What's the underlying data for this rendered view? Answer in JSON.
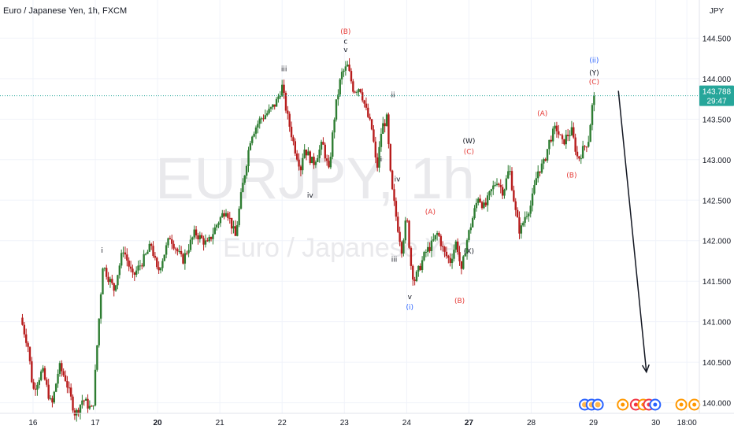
{
  "header": {
    "symbol_title": "Euro / Japanese Yen, 1h, FXCM"
  },
  "watermark": {
    "ticker": "EURJPY, 1h",
    "name": "Euro / Japanese Yen"
  },
  "price_badge": {
    "price": "143.788",
    "countdown": "29:47",
    "color": "#26a69a"
  },
  "colors": {
    "up": "#26a69a",
    "down": "#ef5350",
    "up_candle": "#2e7d32",
    "down_candle": "#b71c1c",
    "wave_black": "#131722",
    "wave_red": "#e53935",
    "wave_blue": "#2962ff",
    "grid": "#f0f3fa"
  },
  "chart_data": {
    "type": "candlestick",
    "currency_label": "JPY",
    "y_ticks": [
      "144.500",
      "144.000",
      "143.500",
      "143.000",
      "142.500",
      "142.000",
      "141.500",
      "141.000",
      "140.500",
      "140.000"
    ],
    "y_tick_values": [
      144.5,
      144.0,
      143.5,
      143.0,
      142.5,
      142.0,
      141.5,
      141.0,
      140.5,
      140.0
    ],
    "ylim": [
      139.87,
      144.97
    ],
    "x_ticks": [
      {
        "label": "16",
        "bold": false,
        "x": 0.2
      },
      {
        "label": "17",
        "bold": false,
        "x": 1.2
      },
      {
        "label": "20",
        "bold": true,
        "x": 2.2
      },
      {
        "label": "21",
        "bold": false,
        "x": 3.2
      },
      {
        "label": "22",
        "bold": false,
        "x": 4.2
      },
      {
        "label": "23",
        "bold": false,
        "x": 5.2
      },
      {
        "label": "24",
        "bold": false,
        "x": 6.2
      },
      {
        "label": "27",
        "bold": true,
        "x": 7.2
      },
      {
        "label": "28",
        "bold": false,
        "x": 8.2
      },
      {
        "label": "29",
        "bold": false,
        "x": 9.2
      },
      {
        "label": "30",
        "bold": false,
        "x": 10.2
      },
      {
        "label": "18:00",
        "bold": false,
        "x": 10.7
      }
    ],
    "xlim": [
      -0.33,
      10.9
    ],
    "current_price": 143.788,
    "pivots": [
      [
        0.0,
        141.05
      ],
      [
        0.12,
        140.7
      ],
      [
        0.2,
        140.15
      ],
      [
        0.35,
        140.4
      ],
      [
        0.5,
        139.95
      ],
      [
        0.62,
        140.45
      ],
      [
        0.72,
        140.3
      ],
      [
        0.88,
        139.85
      ],
      [
        1.0,
        140.05
      ],
      [
        1.1,
        139.95
      ],
      [
        1.16,
        139.9
      ],
      [
        1.22,
        140.6
      ],
      [
        1.32,
        141.7
      ],
      [
        1.5,
        141.4
      ],
      [
        1.65,
        141.9
      ],
      [
        1.8,
        141.55
      ],
      [
        2.0,
        141.8
      ],
      [
        2.1,
        141.95
      ],
      [
        2.2,
        141.6
      ],
      [
        2.4,
        142.05
      ],
      [
        2.6,
        141.75
      ],
      [
        2.8,
        142.1
      ],
      [
        3.0,
        141.95
      ],
      [
        3.15,
        142.2
      ],
      [
        3.3,
        142.4
      ],
      [
        3.45,
        142.05
      ],
      [
        3.55,
        142.6
      ],
      [
        3.7,
        143.3
      ],
      [
        3.85,
        143.5
      ],
      [
        4.0,
        143.6
      ],
      [
        4.1,
        143.7
      ],
      [
        4.2,
        143.9
      ],
      [
        4.28,
        143.55
      ],
      [
        4.4,
        143.15
      ],
      [
        4.5,
        142.9
      ],
      [
        4.55,
        143.15
      ],
      [
        4.7,
        142.95
      ],
      [
        4.85,
        143.2
      ],
      [
        4.95,
        142.85
      ],
      [
        5.05,
        143.6
      ],
      [
        5.15,
        144.05
      ],
      [
        5.25,
        144.15
      ],
      [
        5.35,
        143.85
      ],
      [
        5.45,
        143.9
      ],
      [
        5.55,
        143.6
      ],
      [
        5.65,
        143.35
      ],
      [
        5.72,
        142.85
      ],
      [
        5.8,
        143.4
      ],
      [
        5.88,
        143.5
      ],
      [
        5.95,
        142.7
      ],
      [
        6.05,
        142.2
      ],
      [
        6.12,
        141.9
      ],
      [
        6.2,
        142.3
      ],
      [
        6.27,
        141.7
      ],
      [
        6.32,
        141.5
      ],
      [
        6.4,
        141.65
      ],
      [
        6.5,
        141.85
      ],
      [
        6.6,
        141.95
      ],
      [
        6.7,
        142.1
      ],
      [
        6.8,
        141.85
      ],
      [
        6.9,
        141.75
      ],
      [
        7.0,
        142.0
      ],
      [
        7.08,
        141.6
      ],
      [
        7.15,
        141.95
      ],
      [
        7.25,
        142.25
      ],
      [
        7.35,
        142.55
      ],
      [
        7.45,
        142.4
      ],
      [
        7.55,
        142.6
      ],
      [
        7.65,
        142.75
      ],
      [
        7.75,
        142.6
      ],
      [
        7.85,
        142.9
      ],
      [
        7.95,
        142.35
      ],
      [
        8.02,
        142.1
      ],
      [
        8.1,
        142.3
      ],
      [
        8.2,
        142.45
      ],
      [
        8.3,
        142.85
      ],
      [
        8.4,
        142.95
      ],
      [
        8.5,
        143.25
      ],
      [
        8.6,
        143.4
      ],
      [
        8.7,
        143.2
      ],
      [
        8.78,
        143.3
      ],
      [
        8.85,
        143.35
      ],
      [
        8.95,
        143.0
      ],
      [
        9.05,
        143.15
      ],
      [
        9.12,
        143.25
      ],
      [
        9.2,
        143.788
      ]
    ],
    "wave_labels": [
      {
        "text": "i",
        "x": 1.31,
        "y": 141.85,
        "color": "black"
      },
      {
        "text": "iii",
        "x": 4.23,
        "y": 144.09,
        "color": "black"
      },
      {
        "text": "(B)",
        "x": 5.22,
        "y": 144.55,
        "color": "red"
      },
      {
        "text": "c",
        "x": 5.22,
        "y": 144.43,
        "color": "black"
      },
      {
        "text": "v",
        "x": 5.22,
        "y": 144.33,
        "color": "black"
      },
      {
        "text": "ii",
        "x": 5.98,
        "y": 143.77,
        "color": "black"
      },
      {
        "text": "i",
        "x": 5.79,
        "y": 142.98,
        "color": "black"
      },
      {
        "text": "iv",
        "x": 6.05,
        "y": 142.73,
        "color": "black"
      },
      {
        "text": "iv",
        "x": 4.65,
        "y": 142.53,
        "color": "black"
      },
      {
        "text": "iii",
        "x": 6.0,
        "y": 141.74,
        "color": "black"
      },
      {
        "text": "v",
        "x": 6.25,
        "y": 141.28,
        "color": "black"
      },
      {
        "text": "(i)",
        "x": 6.25,
        "y": 141.15,
        "color": "blue"
      },
      {
        "text": "(A)",
        "x": 6.58,
        "y": 142.33,
        "color": "red"
      },
      {
        "text": "(B)",
        "x": 7.05,
        "y": 141.23,
        "color": "red"
      },
      {
        "text": "(W)",
        "x": 7.2,
        "y": 143.2,
        "color": "black"
      },
      {
        "text": "(C)",
        "x": 7.2,
        "y": 143.07,
        "color": "red"
      },
      {
        "text": "(X)",
        "x": 7.2,
        "y": 141.84,
        "color": "black"
      },
      {
        "text": "(A)",
        "x": 8.38,
        "y": 143.54,
        "color": "red"
      },
      {
        "text": "(B)",
        "x": 8.85,
        "y": 142.78,
        "color": "red"
      },
      {
        "text": "(ii)",
        "x": 9.21,
        "y": 144.2,
        "color": "blue"
      },
      {
        "text": "(Y)",
        "x": 9.21,
        "y": 144.04,
        "color": "black"
      },
      {
        "text": "(C)",
        "x": 9.21,
        "y": 143.93,
        "color": "red"
      }
    ],
    "projection_arrow": {
      "from": [
        9.6,
        143.85
      ],
      "to": [
        10.05,
        140.38
      ]
    },
    "event_icons": [
      {
        "x": 9.06,
        "kind": "multi"
      },
      {
        "x": 9.17,
        "kind": "multi"
      },
      {
        "x": 9.27,
        "kind": "multi"
      },
      {
        "x": 9.67,
        "kind": "orange"
      },
      {
        "x": 9.88,
        "kind": "red"
      },
      {
        "x": 10.0,
        "kind": "orange"
      },
      {
        "x": 10.09,
        "kind": "red"
      },
      {
        "x": 10.19,
        "kind": "blue"
      },
      {
        "x": 10.61,
        "kind": "orange"
      },
      {
        "x": 10.82,
        "kind": "orange"
      },
      {
        "x": 10.93,
        "kind": "red"
      },
      {
        "x": 11.03,
        "kind": "red"
      },
      {
        "x": 11.14,
        "kind": "blue"
      }
    ]
  }
}
